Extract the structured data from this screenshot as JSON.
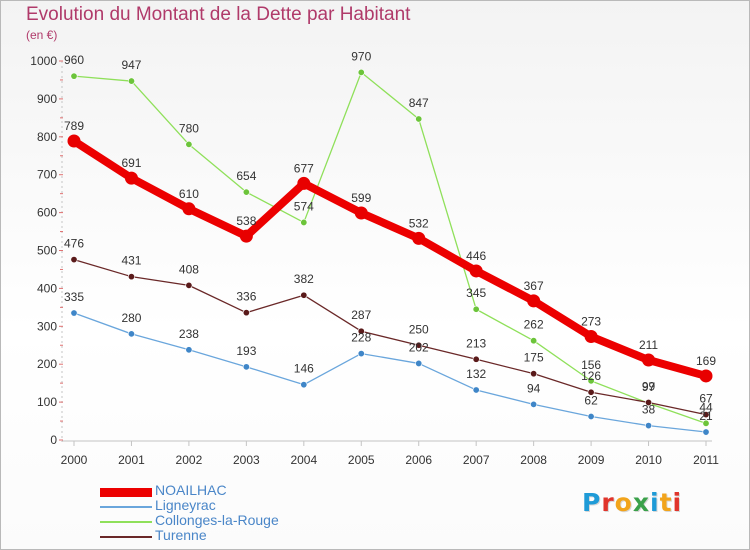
{
  "title": "Evolution du Montant de la Dette par Habitant",
  "subtitle": "(en €)",
  "logo": {
    "text": "Proxiti",
    "letters": [
      {
        "ch": "P",
        "color": "#1f9bd7"
      },
      {
        "ch": "r",
        "color": "#e0342b"
      },
      {
        "ch": "o",
        "color": "#f2a41b"
      },
      {
        "ch": "x",
        "color": "#3aa14a"
      },
      {
        "ch": "i",
        "color": "#1f9bd7"
      },
      {
        "ch": "t",
        "color": "#f2a41b"
      },
      {
        "ch": "i",
        "color": "#e0342b"
      }
    ]
  },
  "chart_data": {
    "type": "line",
    "title": "Evolution du Montant de la Dette par Habitant",
    "subtitle": "(en €)",
    "xlabel": "",
    "ylabel": "",
    "x": [
      "2000",
      "2001",
      "2002",
      "2003",
      "2004",
      "2005",
      "2006",
      "2007",
      "2008",
      "2009",
      "2010",
      "2011"
    ],
    "ylim": [
      0,
      1000
    ],
    "yticks": [
      0,
      100,
      200,
      300,
      400,
      500,
      600,
      700,
      800,
      900,
      1000
    ],
    "grid": false,
    "legend_position": "bottom-left",
    "series": [
      {
        "name": "NOAILHAC",
        "color": "#ec0000",
        "values": [
          789,
          691,
          610,
          538,
          677,
          599,
          532,
          446,
          367,
          273,
          211,
          169
        ]
      },
      {
        "name": "Ligneyrac",
        "color": "#6aa6dc",
        "values": [
          335,
          280,
          238,
          193,
          146,
          228,
          202,
          132,
          94,
          62,
          38,
          21
        ]
      },
      {
        "name": "Collonges-la-Rouge",
        "color": "#8fe05a",
        "values": [
          960,
          947,
          780,
          654,
          574,
          970,
          847,
          345,
          262,
          156,
          97,
          44
        ]
      },
      {
        "name": "Turenne",
        "color": "#6a2828",
        "values": [
          476,
          431,
          408,
          336,
          382,
          287,
          250,
          213,
          175,
          126,
          99,
          67
        ]
      }
    ],
    "data_labels": [
      [
        "789",
        "691",
        "610",
        "538",
        "677",
        "599",
        "532",
        "446",
        "367",
        "273",
        "211",
        "169"
      ],
      [
        "335",
        "280",
        "238",
        "193",
        "146",
        "228",
        "202",
        "132",
        "94",
        "62",
        "38",
        "21"
      ],
      [
        "960",
        "947",
        "780",
        "654",
        "574",
        "970",
        "847",
        "345",
        "262",
        "156",
        "97",
        "44"
      ],
      [
        "476",
        "431",
        "408",
        "336",
        "382",
        "287",
        "250",
        "213",
        "175",
        "126",
        "99",
        "67"
      ]
    ]
  }
}
